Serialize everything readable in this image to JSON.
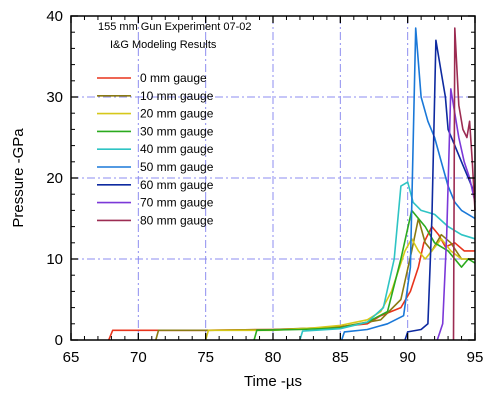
{
  "chart_data": {
    "type": "line",
    "title": "155 mm Gun Experiment 07-02",
    "subtitle": "I&G Modeling Results",
    "xlabel": "Time -µs",
    "ylabel": "Pressure -GPa",
    "xlim": [
      65,
      95
    ],
    "ylim": [
      0,
      40
    ],
    "x_ticks": [
      65,
      70,
      75,
      80,
      85,
      90,
      95
    ],
    "y_ticks": [
      0,
      10,
      20,
      30,
      40
    ],
    "grid": true,
    "legend_position": "upper-left",
    "series": [
      {
        "name": "0 mm gauge",
        "color": "#e8341c",
        "points": [
          [
            67.8,
            0
          ],
          [
            68.1,
            1.2
          ],
          [
            75,
            1.2
          ],
          [
            80,
            1.3
          ],
          [
            84,
            1.5
          ],
          [
            87,
            2
          ],
          [
            88,
            3
          ],
          [
            89.5,
            4
          ],
          [
            90.2,
            6
          ],
          [
            90.8,
            9
          ],
          [
            91.2,
            12
          ],
          [
            91.8,
            14
          ],
          [
            92.3,
            13
          ],
          [
            92.8,
            11.5
          ],
          [
            93.5,
            12
          ],
          [
            94.2,
            11
          ],
          [
            95,
            11
          ]
        ]
      },
      {
        "name": "10 mm gauge",
        "color": "#8a7a12",
        "points": [
          [
            71.3,
            0
          ],
          [
            71.5,
            1.2
          ],
          [
            75,
            1.2
          ],
          [
            80,
            1.3
          ],
          [
            85,
            1.6
          ],
          [
            88,
            2.5
          ],
          [
            89.5,
            5
          ],
          [
            90.3,
            11
          ],
          [
            90.8,
            15
          ],
          [
            91.3,
            12
          ],
          [
            91.8,
            11
          ],
          [
            92.5,
            13
          ],
          [
            93.2,
            12
          ],
          [
            94,
            10
          ],
          [
            95,
            10
          ]
        ]
      },
      {
        "name": "20 mm gauge",
        "color": "#d6c81a",
        "points": [
          [
            75,
            0
          ],
          [
            75.2,
            1.2
          ],
          [
            80,
            1.2
          ],
          [
            83,
            1.5
          ],
          [
            85,
            1.8
          ],
          [
            87,
            2.5
          ],
          [
            88,
            3.5
          ],
          [
            88.8,
            6
          ],
          [
            89.4,
            9
          ],
          [
            89.8,
            11
          ],
          [
            90.3,
            12.5
          ],
          [
            90.8,
            11
          ],
          [
            91.3,
            10
          ],
          [
            91.8,
            11
          ],
          [
            92.5,
            12.5
          ],
          [
            93.2,
            11
          ],
          [
            94,
            10
          ],
          [
            95,
            10
          ]
        ]
      },
      {
        "name": "30 mm gauge",
        "color": "#2aaa1e",
        "points": [
          [
            78.6,
            0
          ],
          [
            78.8,
            1.2
          ],
          [
            82,
            1.3
          ],
          [
            85,
            1.5
          ],
          [
            87,
            2.2
          ],
          [
            88.5,
            3.5
          ],
          [
            89.5,
            10
          ],
          [
            90.3,
            16
          ],
          [
            90.8,
            15
          ],
          [
            91.3,
            14
          ],
          [
            92,
            12
          ],
          [
            93,
            11
          ],
          [
            94,
            9
          ],
          [
            94.5,
            10
          ],
          [
            95,
            9.5
          ]
        ]
      },
      {
        "name": "40 mm gauge",
        "color": "#2ec4c4",
        "points": [
          [
            82,
            0
          ],
          [
            82.2,
            1.1
          ],
          [
            85,
            1.4
          ],
          [
            87,
            2.2
          ],
          [
            88.2,
            4
          ],
          [
            89,
            10
          ],
          [
            89.5,
            19
          ],
          [
            90,
            19.5
          ],
          [
            90.4,
            17
          ],
          [
            91,
            16
          ],
          [
            92,
            15.5
          ],
          [
            93,
            14
          ],
          [
            94,
            13
          ],
          [
            95,
            12.5
          ]
        ]
      },
      {
        "name": "50 mm gauge",
        "color": "#1a78d8",
        "points": [
          [
            85.1,
            0
          ],
          [
            85.3,
            1.0
          ],
          [
            87,
            1.3
          ],
          [
            88.5,
            2
          ],
          [
            89.7,
            3
          ],
          [
            90.2,
            9
          ],
          [
            90.6,
            38.5
          ],
          [
            91,
            30
          ],
          [
            91.5,
            27
          ],
          [
            92,
            25
          ],
          [
            92.5,
            22
          ],
          [
            93,
            19
          ],
          [
            93.5,
            17
          ],
          [
            94,
            16
          ],
          [
            95,
            15
          ]
        ]
      },
      {
        "name": "60 mm gauge",
        "color": "#0e2aa0",
        "points": [
          [
            89.8,
            0
          ],
          [
            90,
            1.0
          ],
          [
            91,
            1.3
          ],
          [
            91.5,
            2
          ],
          [
            91.8,
            15
          ],
          [
            92.1,
            37
          ],
          [
            92.5,
            33
          ],
          [
            92.8,
            30
          ],
          [
            93,
            26
          ],
          [
            93.5,
            24
          ],
          [
            94,
            22
          ],
          [
            94.5,
            20
          ],
          [
            95,
            18
          ]
        ]
      },
      {
        "name": "70 mm gauge",
        "color": "#7b38d8",
        "points": [
          [
            92.2,
            0
          ],
          [
            92.4,
            1.0
          ],
          [
            92.6,
            2
          ],
          [
            92.9,
            13
          ],
          [
            93.2,
            31
          ],
          [
            93.5,
            28
          ],
          [
            93.8,
            25
          ],
          [
            94.2,
            22
          ],
          [
            94.6,
            20
          ],
          [
            95,
            17
          ]
        ]
      },
      {
        "name": "80 mm gauge",
        "color": "#9c2c52",
        "points": [
          [
            93.4,
            0
          ],
          [
            93.5,
            38.5
          ],
          [
            93.8,
            29
          ],
          [
            94.1,
            26
          ],
          [
            94.4,
            25
          ],
          [
            94.6,
            27
          ],
          [
            94.8,
            22
          ],
          [
            95,
            16
          ]
        ]
      }
    ]
  }
}
